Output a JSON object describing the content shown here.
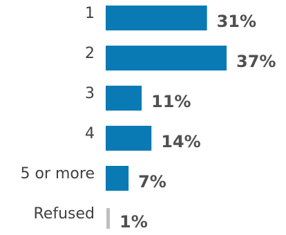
{
  "chart_data": {
    "type": "bar",
    "orientation": "horizontal",
    "title": "",
    "xlabel": "",
    "ylabel": "",
    "categories": [
      "1",
      "2",
      "3",
      "4",
      "5 or more",
      "Refused"
    ],
    "values": [
      31,
      37,
      11,
      14,
      7,
      1
    ],
    "value_labels": [
      "31%",
      "37%",
      "11%",
      "14%",
      "7%",
      "1%"
    ],
    "unit": "%",
    "xlim": [
      0,
      37
    ],
    "grid": false,
    "legend": "none",
    "colors": {
      "bar": "#0a7ab5",
      "refused_bar": "#bfbfbf",
      "category_text": "#404040",
      "value_text": "#505050"
    }
  }
}
